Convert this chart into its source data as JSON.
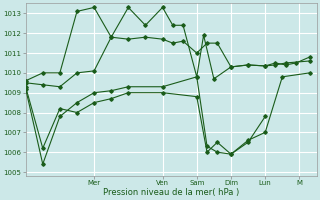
{
  "title": "",
  "xlabel": "Pression niveau de la mer( hPa )",
  "ylabel": "",
  "ylim": [
    1004.8,
    1013.5
  ],
  "yticks": [
    1005,
    1006,
    1007,
    1008,
    1009,
    1010,
    1011,
    1012,
    1013
  ],
  "bg_color": "#cce8e8",
  "grid_color": "#ffffff",
  "line_color": "#1a5c1a",
  "marker_color": "#1a5c1a",
  "day_labels": [
    "Mer",
    "Ven",
    "Sam",
    "Dim",
    "Lun",
    "M"
  ],
  "day_positions": [
    2.0,
    4.0,
    5.0,
    6.0,
    7.0,
    8.0
  ],
  "xlim": [
    0,
    8.5
  ],
  "series1_x": [
    0.0,
    0.5,
    1.0,
    1.5,
    2.0,
    2.5,
    3.0,
    3.5,
    4.0,
    4.3,
    4.6,
    5.0,
    5.2,
    5.5,
    6.0,
    6.5,
    7.0,
    7.3,
    7.6,
    7.9,
    8.3
  ],
  "series1_y": [
    1009.6,
    1010.0,
    1010.0,
    1013.1,
    1013.3,
    1011.8,
    1013.3,
    1012.4,
    1013.3,
    1012.4,
    1012.4,
    1009.8,
    1011.9,
    1009.7,
    1010.3,
    1010.4,
    1010.35,
    1010.5,
    1010.4,
    1010.5,
    1010.8
  ],
  "series2_x": [
    0.0,
    0.5,
    1.0,
    1.5,
    2.0,
    2.5,
    3.0,
    3.5,
    4.0,
    4.3,
    4.6,
    5.0,
    5.3,
    5.6,
    6.0,
    6.5,
    7.0,
    7.3,
    7.6,
    8.3
  ],
  "series2_y": [
    1009.5,
    1009.4,
    1009.3,
    1010.0,
    1010.1,
    1011.8,
    1011.7,
    1011.8,
    1011.7,
    1011.5,
    1011.6,
    1011.0,
    1011.5,
    1011.5,
    1010.3,
    1010.4,
    1010.35,
    1010.4,
    1010.5,
    1010.6
  ],
  "series3_x": [
    0.0,
    0.5,
    1.0,
    1.5,
    2.0,
    2.5,
    3.0,
    4.0,
    5.0,
    5.3,
    5.6,
    6.0,
    6.5,
    7.0
  ],
  "series3_y": [
    1009.3,
    1006.2,
    1008.2,
    1008.0,
    1008.5,
    1008.7,
    1009.0,
    1009.0,
    1008.8,
    1006.0,
    1006.5,
    1005.9,
    1006.5,
    1007.8
  ],
  "series4_x": [
    0.0,
    0.5,
    1.0,
    1.5,
    2.0,
    2.5,
    3.0,
    4.0,
    5.0,
    5.3,
    5.6,
    6.0,
    6.5,
    7.0,
    7.5,
    8.3
  ],
  "series4_y": [
    1009.2,
    1005.4,
    1007.8,
    1008.5,
    1009.0,
    1009.1,
    1009.3,
    1009.3,
    1009.8,
    1006.3,
    1006.0,
    1005.9,
    1006.6,
    1007.0,
    1009.8,
    1010.0
  ]
}
